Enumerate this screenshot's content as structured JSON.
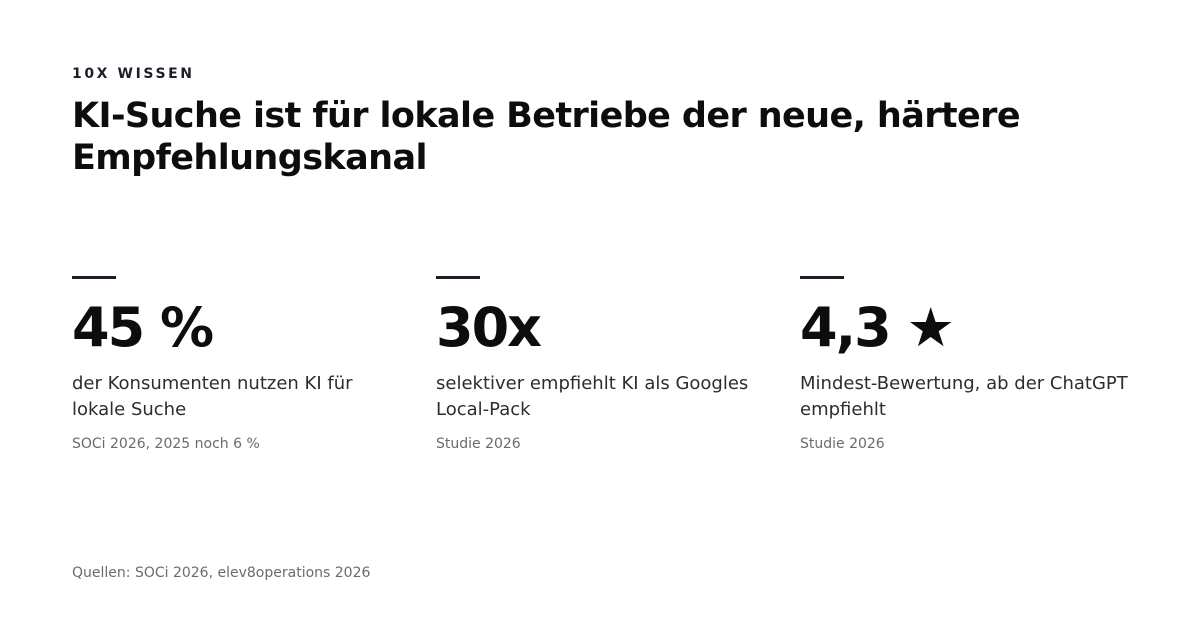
{
  "eyebrow": "10X WISSEN",
  "headline": "KI-Suche ist für lokale Betriebe der neue, härtere Empfehlungskanal",
  "stats": [
    {
      "value": "45 %",
      "description": "der Konsumenten nutzen KI für lokale Suche",
      "source": "SOCi 2026, 2025 noch 6 %"
    },
    {
      "value": "30x",
      "description": "selektiver empfiehlt KI als Googles Local-Pack",
      "source": "Studie 2026"
    },
    {
      "value": "4,3 ★",
      "description": "Mindest-Bewertung, ab der ChatGPT empfiehlt",
      "source": "Studie 2026"
    }
  ],
  "footer": "Quellen: SOCi 2026, elev8operations 2026",
  "colors": {
    "text": "#0d0d0d",
    "rule": "#1e1e2a",
    "muted": "#6b6b6b"
  }
}
